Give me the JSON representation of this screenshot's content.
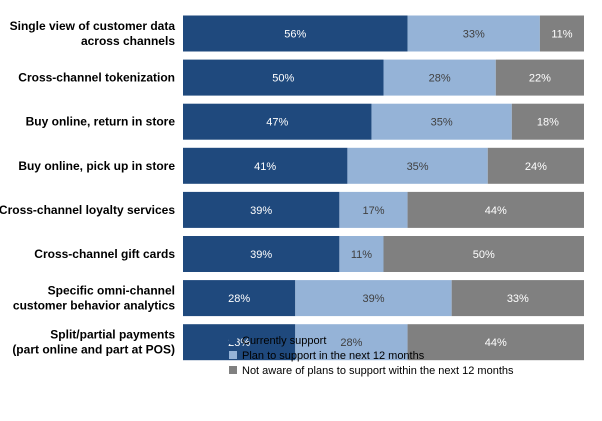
{
  "chart_data": {
    "type": "bar",
    "orientation": "horizontal",
    "stacked": true,
    "unit": "%",
    "categories": [
      [
        "Single view of customer data",
        "across channels"
      ],
      [
        "Cross-channel tokenization"
      ],
      [
        "Buy online, return in store"
      ],
      [
        "Buy online, pick up in store"
      ],
      [
        "Cross-channel loyalty services"
      ],
      [
        "Cross-channel gift cards"
      ],
      [
        "Specific omni-channel",
        "customer behavior analytics"
      ],
      [
        "Split/partial payments",
        "(part online and part at POS)"
      ]
    ],
    "series": [
      {
        "name": "Currently support",
        "color": "#1f497d",
        "label_color": "#ffffff",
        "values": [
          56,
          50,
          47,
          41,
          39,
          39,
          28,
          28
        ]
      },
      {
        "name": "Plan to support in the next 12 months",
        "color": "#95b3d7",
        "label_color": "#404040",
        "values": [
          33,
          28,
          35,
          35,
          17,
          11,
          39,
          28
        ]
      },
      {
        "name": "Not aware of plans to support within the next 12 months",
        "color": "#808080",
        "label_color": "#ffffff",
        "values": [
          11,
          22,
          18,
          24,
          44,
          50,
          33,
          44
        ]
      }
    ],
    "xlim": [
      0,
      100
    ],
    "grid": false,
    "legend_position": "bottom"
  }
}
